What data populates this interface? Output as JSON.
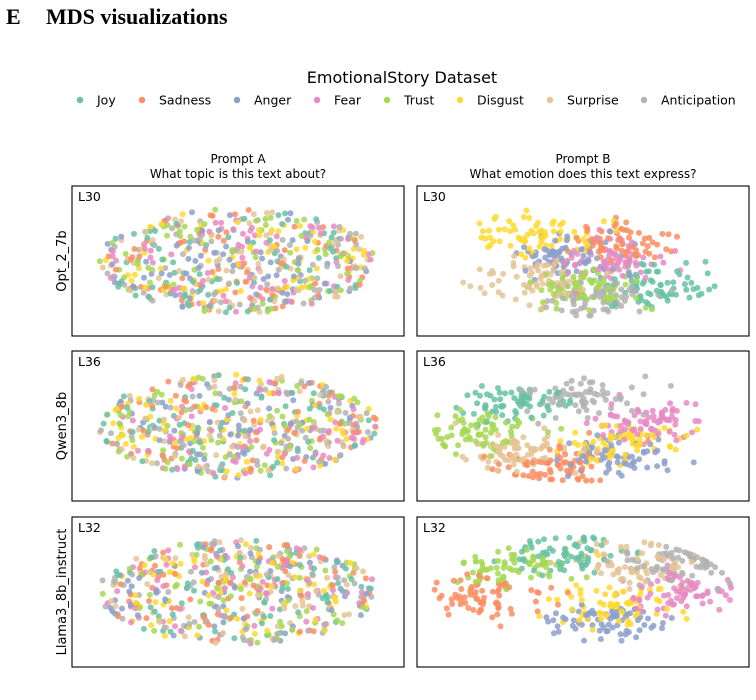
{
  "section": {
    "number": "E",
    "title": "MDS visualizations"
  },
  "figure": {
    "title": "EmotionalStory Dataset",
    "legend": [
      {
        "label": "Joy",
        "color": "#66c2a5"
      },
      {
        "label": "Sadness",
        "color": "#fc8d62"
      },
      {
        "label": "Anger",
        "color": "#8da0cb"
      },
      {
        "label": "Fear",
        "color": "#e78ac3"
      },
      {
        "label": "Trust",
        "color": "#a6d854"
      },
      {
        "label": "Disgust",
        "color": "#ffd92f"
      },
      {
        "label": "Surprise",
        "color": "#e5c494"
      },
      {
        "label": "Anticipation",
        "color": "#b3b3b3"
      }
    ],
    "columns": [
      {
        "title": "Prompt A",
        "subtitle": "What topic is this text about?"
      },
      {
        "title": "Prompt B",
        "subtitle": "What emotion does this text express?"
      }
    ],
    "rows": [
      {
        "model": "Opt_2_7b",
        "layer": "L30"
      },
      {
        "model": "Qwen3_8b",
        "layer": "L36"
      },
      {
        "model": "Llama3_8b_instruct",
        "layer": "L32"
      }
    ]
  },
  "chart_data": {
    "type": "scatter",
    "title": "EmotionalStory Dataset",
    "categories": [
      "Joy",
      "Sadness",
      "Anger",
      "Fear",
      "Trust",
      "Disgust",
      "Surprise",
      "Anticipation"
    ],
    "axes": "hidden (MDS embedding, no ticks)",
    "panels": [
      {
        "row": "Opt_2_7b",
        "layer": "L30",
        "prompt": "Prompt A",
        "structure": "mixed",
        "cluster_centers": null
      },
      {
        "row": "Opt_2_7b",
        "layer": "L30",
        "prompt": "Prompt B",
        "structure": "clustered",
        "cluster_centers": {
          "Joy": [
            0.72,
            0.7
          ],
          "Sadness": [
            0.62,
            0.35
          ],
          "Anger": [
            0.42,
            0.45
          ],
          "Fear": [
            0.6,
            0.5
          ],
          "Trust": [
            0.5,
            0.72
          ],
          "Disgust": [
            0.35,
            0.3
          ],
          "Surprise": [
            0.35,
            0.65
          ],
          "Anticipation": [
            0.55,
            0.8
          ]
        }
      },
      {
        "row": "Qwen3_8b",
        "layer": "L36",
        "prompt": "Prompt A",
        "structure": "mixed",
        "cluster_centers": null
      },
      {
        "row": "Qwen3_8b",
        "layer": "L36",
        "prompt": "Prompt B",
        "structure": "clustered",
        "cluster_centers": {
          "Joy": [
            0.3,
            0.3
          ],
          "Sadness": [
            0.42,
            0.8
          ],
          "Anger": [
            0.6,
            0.75
          ],
          "Fear": [
            0.72,
            0.45
          ],
          "Trust": [
            0.18,
            0.55
          ],
          "Disgust": [
            0.62,
            0.62
          ],
          "Surprise": [
            0.3,
            0.7
          ],
          "Anticipation": [
            0.52,
            0.3
          ]
        }
      },
      {
        "row": "Llama3_8b_instruct",
        "layer": "L32",
        "prompt": "Prompt A",
        "structure": "mixed",
        "cluster_centers": null
      },
      {
        "row": "Llama3_8b_instruct",
        "layer": "L32",
        "prompt": "Prompt B",
        "structure": "clustered",
        "cluster_centers": {
          "Joy": [
            0.45,
            0.2
          ],
          "Sadness": [
            0.2,
            0.55
          ],
          "Anger": [
            0.58,
            0.72
          ],
          "Fear": [
            0.8,
            0.5
          ],
          "Trust": [
            0.27,
            0.32
          ],
          "Disgust": [
            0.6,
            0.6
          ],
          "Surprise": [
            0.66,
            0.28
          ],
          "Anticipation": [
            0.8,
            0.3
          ]
        }
      }
    ]
  }
}
